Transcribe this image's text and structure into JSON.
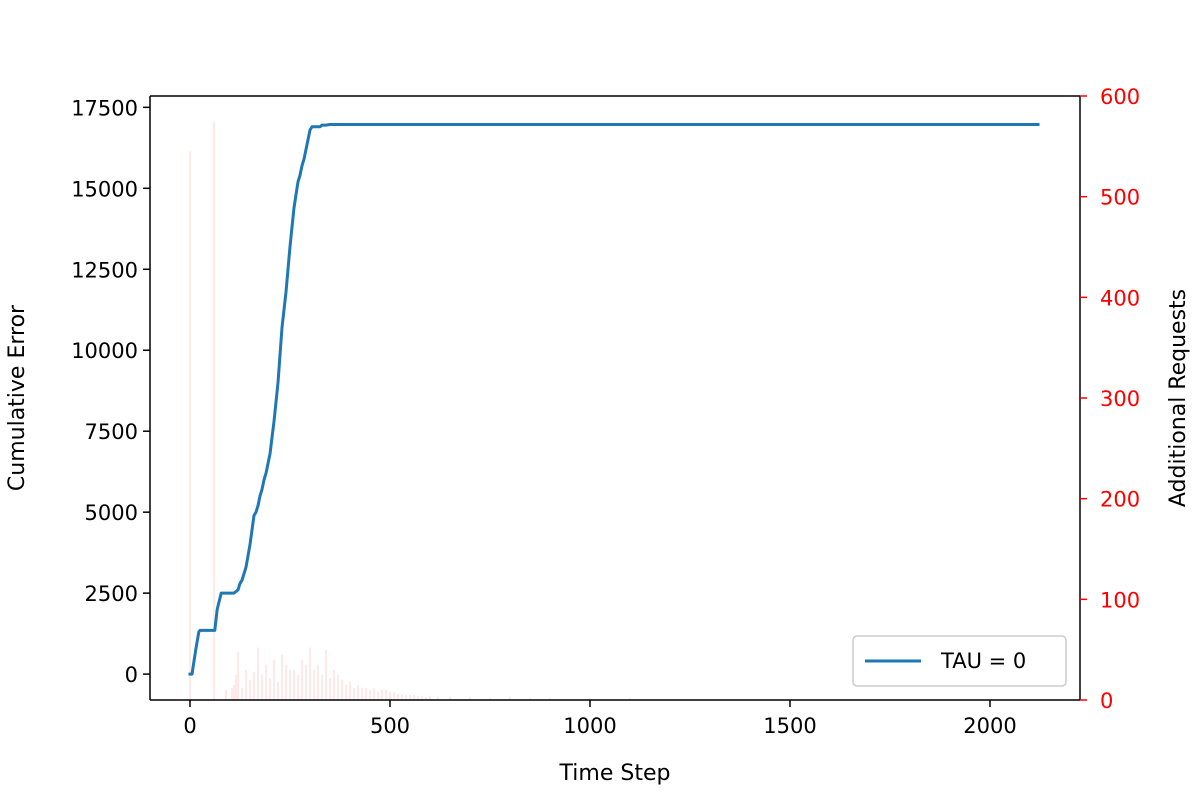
{
  "chart_data": {
    "type": "line",
    "title": "",
    "xlabel": "Time Step",
    "ylabel": "Cumulative Error",
    "y2label": "Additional Requests",
    "xlim": [
      -100,
      2225
    ],
    "ylim": [
      -800,
      17850
    ],
    "y2lim": [
      0,
      600
    ],
    "xticks": [
      0,
      500,
      1000,
      1500,
      2000
    ],
    "yticks": [
      0,
      2500,
      5000,
      7500,
      10000,
      12500,
      15000,
      17500
    ],
    "y2ticks": [
      0,
      100,
      200,
      300,
      400,
      500,
      600
    ],
    "grid": false,
    "legend_position": "lower-right",
    "colors": {
      "line": "#1f77b4",
      "bars": "#ff0000",
      "right_axis": "#ff0000"
    },
    "series": [
      {
        "name": "TAU = 0",
        "axis": "left",
        "x": [
          0,
          5,
          10,
          15,
          22,
          25,
          35,
          45,
          55,
          62,
          68,
          78,
          90,
          110,
          120,
          125,
          130,
          140,
          150,
          160,
          165,
          170,
          175,
          180,
          185,
          190,
          195,
          200,
          210,
          220,
          230,
          240,
          245,
          250,
          255,
          260,
          265,
          270,
          275,
          280,
          285,
          290,
          295,
          300,
          305,
          310,
          315,
          320,
          325,
          330,
          340,
          350,
          360,
          370,
          380,
          400,
          450,
          500,
          600,
          800,
          1000,
          1500,
          2000,
          2120
        ],
        "y": [
          0,
          0,
          400,
          800,
          1300,
          1350,
          1350,
          1350,
          1350,
          1350,
          2000,
          2500,
          2500,
          2500,
          2600,
          2800,
          2900,
          3300,
          4000,
          4900,
          5000,
          5200,
          5500,
          5700,
          6000,
          6200,
          6500,
          6800,
          7800,
          9000,
          10700,
          11800,
          12500,
          13200,
          13800,
          14400,
          14800,
          15200,
          15400,
          15700,
          15900,
          16200,
          16500,
          16800,
          16900,
          16900,
          16900,
          16900,
          16900,
          16950,
          16950,
          16970,
          16970,
          16970,
          16970,
          16970,
          16970,
          16970,
          16970,
          16970,
          16970,
          16970,
          16970,
          16970
        ]
      },
      {
        "name": "",
        "axis": "right",
        "type": "bar",
        "x": [
          0,
          60,
          90,
          105,
          110,
          115,
          120,
          130,
          140,
          150,
          160,
          170,
          180,
          190,
          200,
          210,
          220,
          230,
          240,
          250,
          260,
          270,
          280,
          290,
          300,
          310,
          320,
          330,
          340,
          350,
          360,
          370,
          380,
          390,
          400,
          410,
          420,
          430,
          440,
          450,
          460,
          470,
          480,
          490,
          500,
          510,
          520,
          530,
          540,
          550,
          560,
          570,
          580,
          590,
          600,
          620,
          650,
          700,
          750,
          800,
          850,
          900,
          1000,
          1100
        ],
        "y": [
          545,
          575,
          10,
          12,
          15,
          25,
          48,
          12,
          30,
          20,
          28,
          52,
          25,
          35,
          22,
          40,
          18,
          45,
          35,
          30,
          30,
          25,
          40,
          35,
          52,
          30,
          35,
          25,
          50,
          22,
          30,
          25,
          20,
          15,
          18,
          12,
          15,
          12,
          12,
          10,
          12,
          8,
          10,
          10,
          8,
          8,
          6,
          6,
          5,
          5,
          5,
          4,
          4,
          3,
          4,
          3,
          3,
          3,
          2,
          3,
          2,
          2,
          2,
          2
        ]
      }
    ]
  }
}
